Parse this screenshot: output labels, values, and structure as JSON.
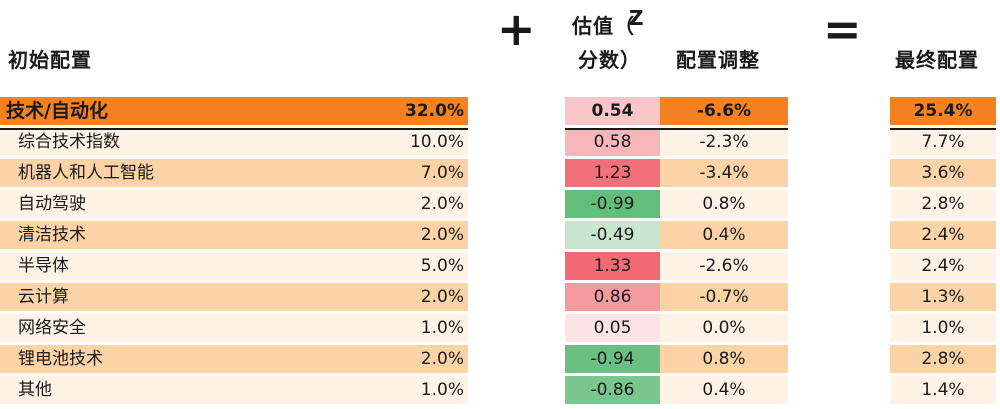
{
  "headers": {
    "initial": "初始配置",
    "zscore_line1": "估值（",
    "zscore_z": "Z",
    "zscore_line2": "分数）",
    "adjust": "配置调整",
    "final": "最终配置"
  },
  "signs": {
    "plus": "+",
    "equals": "="
  },
  "colors": {
    "orange_header": "#f58220",
    "orange_band": "#fcd3a6",
    "cream_band": "#fef3e6"
  },
  "rows": [
    {
      "name": "技术/自动化",
      "initial": "32.0%",
      "z": "0.54",
      "z_color": "#f8c6c8",
      "adjust": "-6.6%",
      "final": "25.4%",
      "top": true
    },
    {
      "name": "综合技术指数",
      "initial": "10.0%",
      "z": "0.58",
      "z_color": "#f7b6b9",
      "adjust": "-2.3%",
      "final": "7.7%"
    },
    {
      "name": "机器人和人工智能",
      "initial": "7.0%",
      "z": "1.23",
      "z_color": "#f2707a",
      "adjust": "-3.4%",
      "final": "3.6%"
    },
    {
      "name": "自动驾驶",
      "initial": "2.0%",
      "z": "-0.99",
      "z_color": "#63be7b",
      "adjust": "0.8%",
      "final": "2.8%"
    },
    {
      "name": "清洁技术",
      "initial": "2.0%",
      "z": "-0.49",
      "z_color": "#c8e6cf",
      "adjust": "0.4%",
      "final": "2.4%"
    },
    {
      "name": "半导体",
      "initial": "5.0%",
      "z": "1.33",
      "z_color": "#f16a74",
      "adjust": "-2.6%",
      "final": "2.4%"
    },
    {
      "name": "云计算",
      "initial": "2.0%",
      "z": "0.86",
      "z_color": "#f59aa0",
      "adjust": "-0.7%",
      "final": "1.3%"
    },
    {
      "name": "网络安全",
      "initial": "1.0%",
      "z": "0.05",
      "z_color": "#fce4e6",
      "adjust": "0.0%",
      "final": "1.0%"
    },
    {
      "name": "锂电池技术",
      "initial": "2.0%",
      "z": "-0.94",
      "z_color": "#6ac080",
      "adjust": "0.8%",
      "final": "2.8%"
    },
    {
      "name": "其他",
      "initial": "1.0%",
      "z": "-0.86",
      "z_color": "#7ac68c",
      "adjust": "0.4%",
      "final": "1.4%"
    }
  ]
}
